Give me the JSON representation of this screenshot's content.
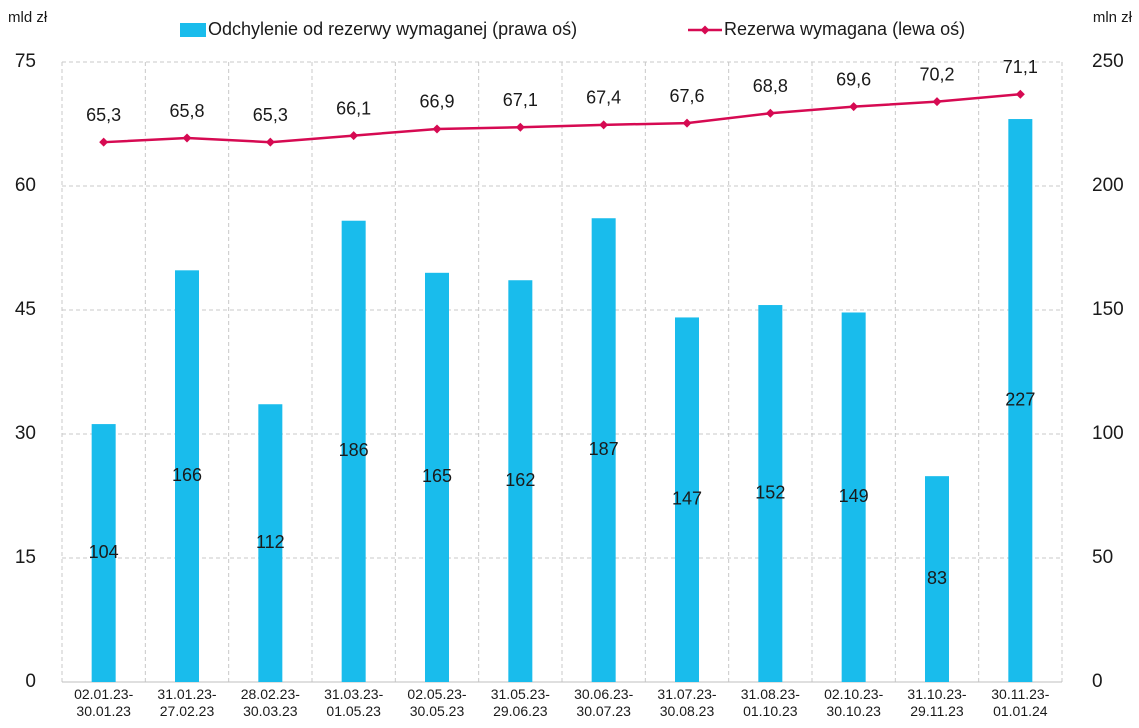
{
  "chart_data": {
    "type": "combo",
    "ylabel": "mld zł",
    "y2label": "mln zł",
    "categories": [
      "02.01.23-30.01.23",
      "31.01.23-27.02.23",
      "28.02.23-30.03.23",
      "31.03.23-01.05.23",
      "02.05.23-30.05.23",
      "31.05.23-29.06.23",
      "30.06.23-30.07.23",
      "31.07.23-30.08.23",
      "31.08.23-01.10.23",
      "02.10.23-30.10.23",
      "31.10.23-29.11.23",
      "30.11.23-01.01.24"
    ],
    "series": [
      {
        "name": "Odchylenie od rezerwy wymaganej (prawa oś)",
        "type": "bar",
        "axis": "y2",
        "color": "#19bcec",
        "values": [
          104,
          166,
          112,
          186,
          165,
          162,
          187,
          147,
          152,
          149,
          83,
          227
        ]
      },
      {
        "name": "Rezerwa wymagana (lewa oś)",
        "type": "line",
        "axis": "y",
        "color": "#d60a52",
        "values": [
          65.3,
          65.8,
          65.3,
          66.1,
          66.9,
          67.1,
          67.4,
          67.6,
          68.8,
          69.6,
          70.2,
          71.1
        ],
        "value_labels": [
          "65,3",
          "65,8",
          "65,3",
          "66,1",
          "66,9",
          "67,1",
          "67,4",
          "67,6",
          "68,8",
          "69,6",
          "70,2",
          "71,1"
        ]
      }
    ],
    "ylim": [
      0,
      75
    ],
    "yticks": [
      0,
      15,
      30,
      45,
      60,
      75
    ],
    "y2lim": [
      0,
      250
    ],
    "y2ticks": [
      0,
      50,
      100,
      150,
      200,
      250
    ],
    "grid": true,
    "legend": "top"
  }
}
